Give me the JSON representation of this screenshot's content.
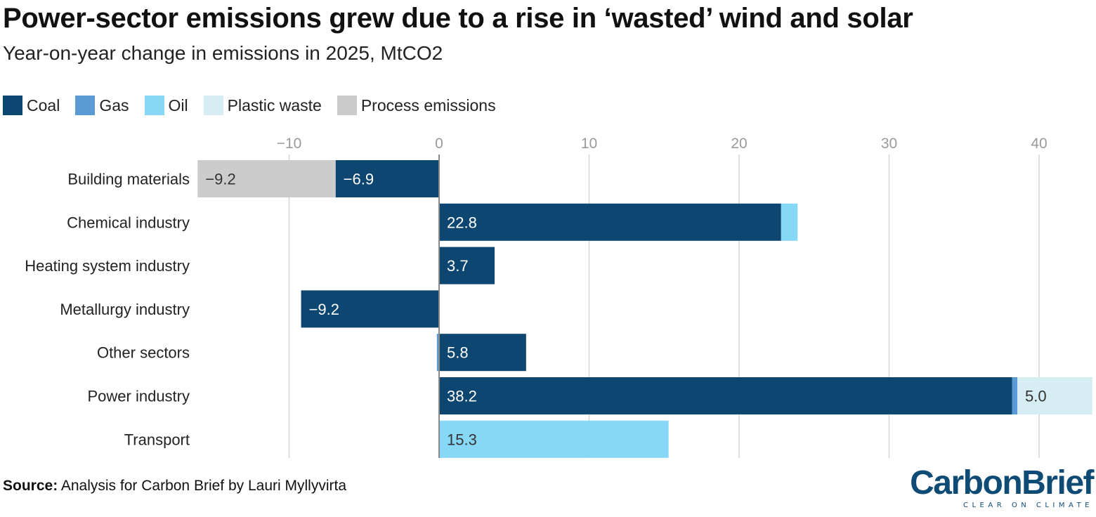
{
  "title": "Power-sector emissions grew due to a rise in ‘wasted’ wind and solar",
  "subtitle": "Year-on-year change in emissions in 2025, MtCO2",
  "source_label": "Source:",
  "source_text": " Analysis for Carbon Brief by Lauri Myllyvirta",
  "logo": {
    "name": "CarbonBrief",
    "tagline": "CLEAR ON CLIMATE"
  },
  "colors": {
    "Coal": "#0d4671",
    "Gas": "#5b9bd5",
    "Oil": "#87d7f7",
    "Plastic waste": "#d5edf3",
    "Process emissions": "#cccccc"
  },
  "chart_data": {
    "type": "bar",
    "orientation": "horizontal",
    "stacked": true,
    "categories": [
      "Building materials",
      "Chemical industry",
      "Heating system industry",
      "Metallurgy industry",
      "Other sectors",
      "Power industry",
      "Transport"
    ],
    "series": [
      {
        "name": "Coal",
        "values": [
          -6.9,
          22.8,
          3.7,
          -9.2,
          5.8,
          38.2,
          0
        ]
      },
      {
        "name": "Gas",
        "values": [
          0,
          0,
          0,
          0,
          -0.15,
          0.35,
          0
        ]
      },
      {
        "name": "Oil",
        "values": [
          0,
          1.1,
          0,
          0,
          0,
          0,
          15.3
        ]
      },
      {
        "name": "Plastic waste",
        "values": [
          0,
          0,
          0,
          0,
          0,
          5.0,
          0
        ]
      },
      {
        "name": "Process emissions",
        "values": [
          -9.2,
          0,
          0,
          0,
          0,
          0,
          0
        ]
      }
    ],
    "data_labels": [
      {
        "category": "Building materials",
        "series": "Process emissions",
        "text": "−9.2"
      },
      {
        "category": "Building materials",
        "series": "Coal",
        "text": "−6.9"
      },
      {
        "category": "Chemical industry",
        "series": "Coal",
        "text": "22.8"
      },
      {
        "category": "Heating system industry",
        "series": "Coal",
        "text": "3.7"
      },
      {
        "category": "Metallurgy industry",
        "series": "Coal",
        "text": "−9.2"
      },
      {
        "category": "Other sectors",
        "series": "Coal",
        "text": "5.8"
      },
      {
        "category": "Power industry",
        "series": "Coal",
        "text": "38.2"
      },
      {
        "category": "Power industry",
        "series": "Plastic waste",
        "text": "5.0"
      },
      {
        "category": "Transport",
        "series": "Oil",
        "text": "15.3"
      }
    ],
    "xlim": [
      -16.1,
      43.6
    ],
    "x_ticks": [
      -10,
      0,
      10,
      20,
      30,
      40
    ],
    "x_tick_labels": [
      "−10",
      "0",
      "10",
      "20",
      "30",
      "40"
    ],
    "grid": true,
    "legend_position": "top-left",
    "axis_position": "top"
  }
}
